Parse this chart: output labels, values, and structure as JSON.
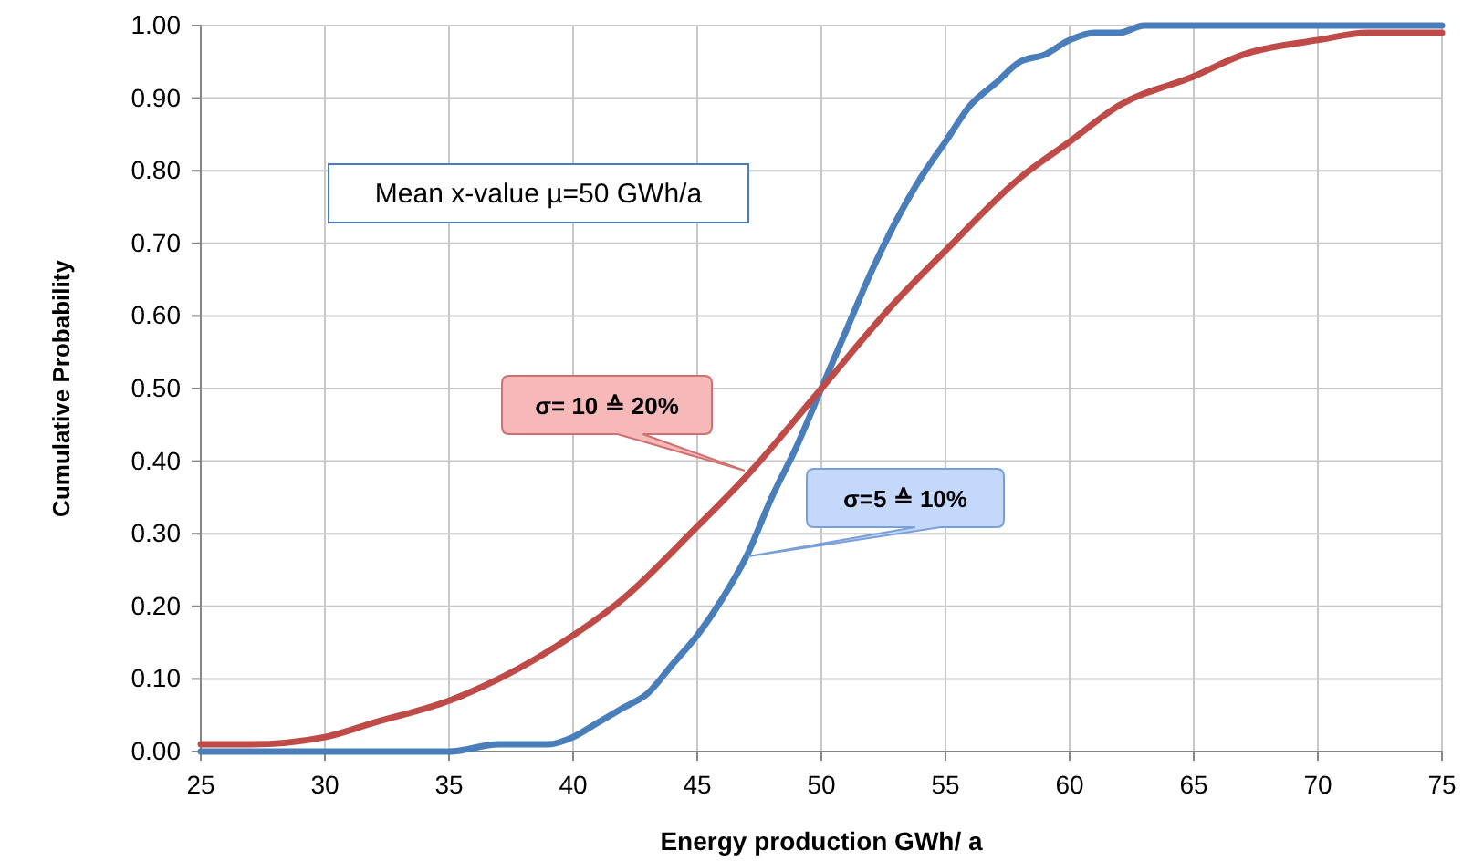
{
  "chart_data": {
    "type": "line",
    "xlabel": "Energy production GWh/ a",
    "ylabel": "Cumulative Probability",
    "xlim": [
      25,
      75
    ],
    "xticks": [
      25,
      30,
      35,
      40,
      45,
      50,
      55,
      60,
      65,
      70,
      75
    ],
    "ylim": [
      0,
      1
    ],
    "yticks": [
      {
        "value": 0,
        "label": "0.00"
      },
      {
        "value": 0.1,
        "label": "0.10"
      },
      {
        "value": 0.2,
        "label": "0.20"
      },
      {
        "value": 0.3,
        "label": "0.30"
      },
      {
        "value": 0.4,
        "label": "0.40"
      },
      {
        "value": 0.5,
        "label": "0.50"
      },
      {
        "value": 0.6,
        "label": "0.60"
      },
      {
        "value": 0.7,
        "label": "0.70"
      },
      {
        "value": 0.8,
        "label": "0.80"
      },
      {
        "value": 0.9,
        "label": "0.90"
      },
      {
        "value": 1,
        "label": "1.00"
      }
    ],
    "grid": true,
    "marker": "none",
    "line_style": "solid",
    "series": [
      {
        "color": "#4a7ebb",
        "x": [
          25,
          30,
          35,
          37,
          38,
          39,
          40,
          41,
          42,
          43,
          44,
          45,
          46,
          47,
          48,
          49,
          50,
          51,
          52,
          53,
          54,
          55,
          56,
          57,
          58,
          59,
          60,
          61,
          62,
          63,
          65,
          70,
          75
        ],
        "values": [
          0,
          0,
          0,
          0.01,
          0.01,
          0.01,
          0.02,
          0.04,
          0.06,
          0.08,
          0.12,
          0.16,
          0.21,
          0.27,
          0.35,
          0.42,
          0.5,
          0.58,
          0.66,
          0.73,
          0.79,
          0.84,
          0.89,
          0.92,
          0.95,
          0.96,
          0.98,
          0.99,
          0.99,
          1,
          1,
          1,
          1
        ]
      },
      {
        "color": "#be4b48",
        "x": [
          25,
          27,
          30,
          32,
          35,
          37,
          40,
          42,
          45,
          47,
          50,
          53,
          55,
          58,
          60,
          62,
          65,
          67,
          70,
          72,
          75
        ],
        "values": [
          0.01,
          0.01,
          0.02,
          0.04,
          0.07,
          0.1,
          0.16,
          0.21,
          0.31,
          0.38,
          0.5,
          0.62,
          0.69,
          0.79,
          0.84,
          0.89,
          0.93,
          0.96,
          0.98,
          0.99,
          0.99
        ]
      }
    ],
    "annotations": [
      "Mean x-value µ=50 GWh/a",
      "σ= 10 ≙ 20%",
      "σ=5 ≙ 10%"
    ]
  }
}
